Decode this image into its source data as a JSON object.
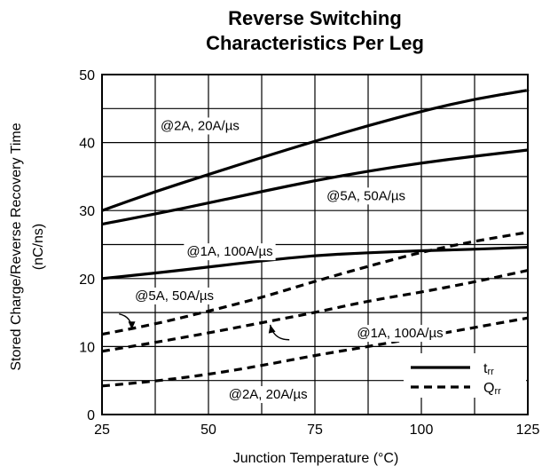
{
  "chart_data": {
    "type": "line",
    "title_lines": [
      "Reverse Switching",
      "Characteristics Per Leg"
    ],
    "xlabel": "Junction Temperature (°C)",
    "ylabel_lines": [
      "Stored Charge/Reverse Recovery Time",
      "(nC/ns)"
    ],
    "xlim": [
      25,
      125
    ],
    "ylim": [
      0,
      50
    ],
    "x_ticks": [
      25,
      50,
      75,
      100,
      125
    ],
    "y_ticks": [
      0,
      10,
      20,
      30,
      40,
      50
    ],
    "grid": true,
    "series": [
      {
        "id": "trr_2A",
        "kind": "trr",
        "style": "solid",
        "x": [
          25,
          37.5,
          50,
          62.5,
          75,
          87.5,
          100,
          112.5,
          125
        ],
        "y": [
          30.0,
          32.8,
          35.3,
          37.8,
          40.2,
          42.5,
          44.6,
          46.4,
          47.7
        ]
      },
      {
        "id": "trr_5A",
        "kind": "trr",
        "style": "solid",
        "x": [
          25,
          37.5,
          50,
          62.5,
          75,
          87.5,
          100,
          112.5,
          125
        ],
        "y": [
          28.0,
          29.5,
          31.1,
          32.8,
          34.4,
          35.8,
          37.0,
          38.0,
          38.9
        ]
      },
      {
        "id": "trr_1A",
        "kind": "trr",
        "style": "solid",
        "x": [
          25,
          37.5,
          50,
          62.5,
          75,
          87.5,
          100,
          112.5,
          125
        ],
        "y": [
          20.0,
          20.8,
          21.7,
          22.6,
          23.4,
          23.8,
          24.1,
          24.3,
          24.6
        ]
      },
      {
        "id": "qrr_5A",
        "kind": "Qrr",
        "style": "dashed",
        "x": [
          25,
          37.5,
          50,
          62.5,
          75,
          87.5,
          100,
          112.5,
          125
        ],
        "y": [
          11.8,
          13.3,
          15.2,
          17.2,
          19.6,
          21.8,
          23.9,
          25.5,
          26.8
        ]
      },
      {
        "id": "qrr_1A",
        "kind": "Qrr",
        "style": "dashed",
        "x": [
          25,
          37.5,
          50,
          62.5,
          75,
          87.5,
          100,
          112.5,
          125
        ],
        "y": [
          9.3,
          10.6,
          12.0,
          13.5,
          15.0,
          16.7,
          18.0,
          19.5,
          21.2
        ]
      },
      {
        "id": "qrr_2A",
        "kind": "Qrr",
        "style": "dashed",
        "x": [
          25,
          37.5,
          50,
          62.5,
          75,
          87.5,
          100,
          112.5,
          125
        ],
        "y": [
          4.2,
          4.9,
          5.9,
          7.2,
          8.7,
          10.0,
          11.4,
          12.8,
          14.2
        ]
      }
    ],
    "annotations": [
      {
        "text": "@2A, 20A/µs",
        "x": 48,
        "y": 42.5,
        "anchor": "middle"
      },
      {
        "text": "@5A, 50A/µs",
        "x": 87,
        "y": 32.2,
        "anchor": "middle"
      },
      {
        "text": "@1A, 100A/µs",
        "x": 55,
        "y": 24.0,
        "anchor": "middle"
      },
      {
        "text": "@5A, 50A/µs",
        "x": 42,
        "y": 17.5,
        "anchor": "middle"
      },
      {
        "text": "@1A, 100A/µs",
        "x": 95,
        "y": 12.0,
        "anchor": "middle"
      },
      {
        "text": "@2A, 20A/µs",
        "x": 64,
        "y": 3.0,
        "anchor": "middle"
      }
    ],
    "arrows": [
      {
        "from": [
          29,
          14.8
        ],
        "to": [
          32,
          12.5
        ],
        "path": "curve"
      },
      {
        "from": [
          69,
          11.0
        ],
        "to": [
          64.5,
          13.2
        ],
        "path": "curve"
      }
    ],
    "legend": {
      "placement": "bottom-right",
      "entries": [
        {
          "label": "t",
          "sub": "rr",
          "style": "solid"
        },
        {
          "label": "Q",
          "sub": "rr",
          "style": "dashed"
        }
      ]
    }
  }
}
